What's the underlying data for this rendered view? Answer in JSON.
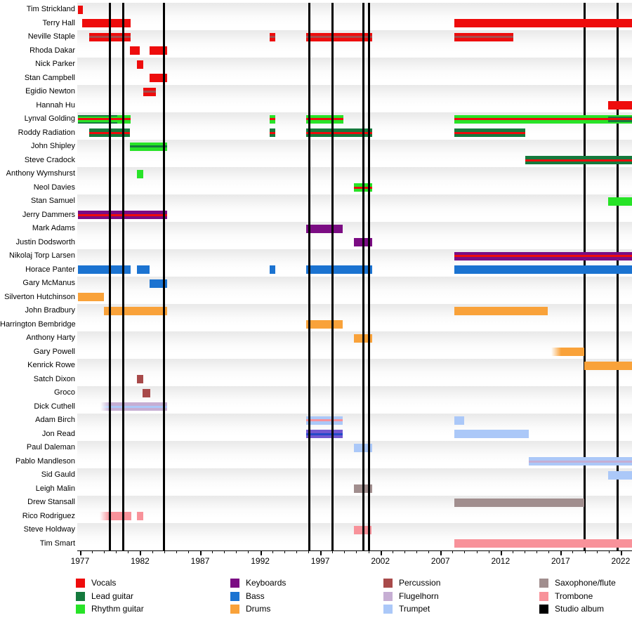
{
  "palette": {
    "vocals": "#ee0c0c",
    "lead_guitar": "#157a3d",
    "rhythm_guitar": "#27e327",
    "keyboards": "#7b0c83",
    "bass": "#1b73d1",
    "drums": "#f9a23a",
    "percussion": "#a84a4a",
    "flugelhorn": "#c6aed3",
    "trumpet": "#abc8f8",
    "sax_flute": "#a18e8e",
    "trombone": "#f8929a",
    "studio_album": "#000000",
    "flugelhorn_deep": "#7257d0",
    "trumpet_deep": "#2449c9"
  },
  "legend": [
    {
      "label": "Vocals",
      "color": "vocals"
    },
    {
      "label": "Lead guitar",
      "color": "lead_guitar"
    },
    {
      "label": "Rhythm guitar",
      "color": "rhythm_guitar"
    },
    {
      "label": "Keyboards",
      "color": "keyboards"
    },
    {
      "label": "Bass",
      "color": "bass"
    },
    {
      "label": "Drums",
      "color": "drums"
    },
    {
      "label": "Percussion",
      "color": "percussion"
    },
    {
      "label": "Flugelhorn",
      "color": "flugelhorn"
    },
    {
      "label": "Trumpet",
      "color": "trumpet"
    },
    {
      "label": "Saxophone/flute",
      "color": "sax_flute"
    },
    {
      "label": "Trombone",
      "color": "trombone"
    },
    {
      "label": "Studio album",
      "color": "studio_album"
    }
  ],
  "chart_data": {
    "type": "timeline",
    "x_domain": [
      1976.77,
      2022.94
    ],
    "x_ticks_major": [
      1977,
      1982,
      1987,
      1992,
      1997,
      2002,
      2007,
      2012,
      2017,
      2022
    ],
    "x_minor_step": 1,
    "albums": [
      {
        "year": 1979.5,
        "layer": "front"
      },
      {
        "year": 1980.57,
        "layer": "front"
      },
      {
        "year": 1983.97,
        "layer": "front"
      },
      {
        "year": 1996.1,
        "layer": "front"
      },
      {
        "year": 1998.03,
        "layer": "front"
      },
      {
        "year": 2000.61,
        "layer": "front"
      },
      {
        "year": 2001.08,
        "layer": "front"
      },
      {
        "year": 2019.0,
        "layer": "back"
      },
      {
        "year": 2021.72,
        "layer": "back"
      }
    ],
    "members": [
      {
        "label": "Tim Strickland",
        "bars": [
          {
            "s": 1976.82,
            "e": 1977.25,
            "st": [
              "vocals"
            ]
          }
        ]
      },
      {
        "label": "Terry Hall",
        "bars": [
          {
            "s": 1977.18,
            "e": 1981.21,
            "st": [
              "vocals"
            ]
          },
          {
            "s": 2008.14,
            "e": 2022.94,
            "st": [
              "vocals"
            ]
          }
        ]
      },
      {
        "label": "Neville Staple",
        "bars": [
          {
            "s": 1977.74,
            "e": 1981.21,
            "st": [
              "vocals",
              "percussion",
              "vocals"
            ]
          },
          {
            "s": 1992.78,
            "e": 1993.25,
            "st": [
              "vocals",
              "percussion",
              "vocals"
            ]
          },
          {
            "s": 1995.82,
            "e": 2001.31,
            "st": [
              "vocals",
              "percussion",
              "vocals"
            ]
          },
          {
            "s": 2008.14,
            "e": 2013.06,
            "st": [
              "vocals",
              "percussion",
              "vocals"
            ]
          }
        ]
      },
      {
        "label": "Rhoda Dakar",
        "bars": [
          {
            "s": 1981.15,
            "e": 1982.0,
            "st": [
              "vocals"
            ]
          },
          {
            "s": 1982.79,
            "e": 1984.23,
            "st": [
              "vocals"
            ]
          }
        ]
      },
      {
        "label": "Nick Parker",
        "bars": [
          {
            "s": 1981.73,
            "e": 1982.28,
            "st": [
              "vocals"
            ]
          }
        ]
      },
      {
        "label": "Stan Campbell",
        "bars": [
          {
            "s": 1982.79,
            "e": 1984.23,
            "st": [
              "vocals"
            ]
          }
        ]
      },
      {
        "label": "Egidio Newton",
        "bars": [
          {
            "s": 1982.28,
            "e": 1983.31,
            "st": [
              "vocals",
              "percussion",
              "vocals"
            ]
          }
        ]
      },
      {
        "label": "Hannah Hu",
        "bars": [
          {
            "s": 2020.94,
            "e": 2022.94,
            "st": [
              "vocals"
            ]
          }
        ]
      },
      {
        "label": "Lynval Golding",
        "bars": [
          {
            "s": 1976.82,
            "e": 1980.1,
            "st": [
              "lead_guitar",
              "rhythm_guitar",
              "vocals",
              "rhythm_guitar",
              "lead_guitar"
            ]
          },
          {
            "s": 1980.1,
            "e": 1981.21,
            "st": [
              "rhythm_guitar",
              "vocals",
              "rhythm_guitar"
            ]
          },
          {
            "s": 1992.78,
            "e": 1993.25,
            "st": [
              "rhythm_guitar",
              "vocals",
              "rhythm_guitar"
            ]
          },
          {
            "s": 1995.82,
            "e": 1998.92,
            "st": [
              "rhythm_guitar",
              "vocals",
              "rhythm_guitar"
            ]
          },
          {
            "s": 2008.14,
            "e": 2020.94,
            "st": [
              "rhythm_guitar",
              "vocals",
              "rhythm_guitar"
            ]
          },
          {
            "s": 2020.94,
            "e": 2022.94,
            "st": [
              "rhythm_guitar",
              "lead_guitar",
              "vocals",
              "lead_guitar",
              "rhythm_guitar"
            ]
          }
        ]
      },
      {
        "label": "Roddy Radiation",
        "bars": [
          {
            "s": 1977.74,
            "e": 1981.15,
            "st": [
              "lead_guitar",
              "vocals",
              "lead_guitar"
            ]
          },
          {
            "s": 1992.78,
            "e": 1993.25,
            "st": [
              "lead_guitar",
              "vocals",
              "lead_guitar"
            ]
          },
          {
            "s": 1995.82,
            "e": 2001.31,
            "st": [
              "lead_guitar",
              "vocals",
              "lead_guitar"
            ]
          },
          {
            "s": 2008.14,
            "e": 2014.05,
            "st": [
              "lead_guitar",
              "vocals",
              "lead_guitar"
            ]
          }
        ]
      },
      {
        "label": "John Shipley",
        "bars": [
          {
            "s": 1981.15,
            "e": 1984.23,
            "st": [
              "rhythm_guitar",
              "lead_guitar",
              "rhythm_guitar"
            ]
          }
        ]
      },
      {
        "label": "Steve Cradock",
        "bars": [
          {
            "s": 2014.05,
            "e": 2022.94,
            "st": [
              "lead_guitar",
              "vocals",
              "lead_guitar"
            ]
          }
        ]
      },
      {
        "label": "Anthony Wymshurst",
        "bars": [
          {
            "s": 1981.73,
            "e": 1982.28,
            "st": [
              "rhythm_guitar"
            ]
          }
        ]
      },
      {
        "label": "Neol Davies",
        "bars": [
          {
            "s": 1999.81,
            "e": 2001.31,
            "st": [
              "rhythm_guitar",
              "vocals",
              "rhythm_guitar"
            ]
          }
        ]
      },
      {
        "label": "Stan Samuel",
        "bars": [
          {
            "s": 2020.94,
            "e": 2022.94,
            "st": [
              "rhythm_guitar"
            ]
          }
        ]
      },
      {
        "label": "Jerry Dammers",
        "bars": [
          {
            "s": 1976.82,
            "e": 1984.23,
            "st": [
              "keyboards",
              "vocals",
              "keyboards"
            ]
          }
        ]
      },
      {
        "label": "Mark Adams",
        "bars": [
          {
            "s": 1995.82,
            "e": 1998.86,
            "st": [
              "keyboards"
            ]
          }
        ]
      },
      {
        "label": "Justin Dodsworth",
        "bars": [
          {
            "s": 1999.81,
            "e": 2001.31,
            "st": [
              "keyboards"
            ]
          }
        ]
      },
      {
        "label": "Nikolaj Torp Larsen",
        "bars": [
          {
            "s": 2008.14,
            "e": 2022.94,
            "st": [
              "keyboards",
              "vocals",
              "keyboards"
            ]
          }
        ]
      },
      {
        "label": "Horace Panter",
        "bars": [
          {
            "s": 1976.82,
            "e": 1981.21,
            "st": [
              "bass"
            ]
          },
          {
            "s": 1981.73,
            "e": 1982.79,
            "st": [
              "bass"
            ]
          },
          {
            "s": 1992.78,
            "e": 1993.25,
            "st": [
              "bass"
            ]
          },
          {
            "s": 1995.82,
            "e": 2001.31,
            "st": [
              "bass"
            ]
          },
          {
            "s": 2008.14,
            "e": 2022.94,
            "st": [
              "bass"
            ]
          }
        ]
      },
      {
        "label": "Gary McManus",
        "bars": [
          {
            "s": 1982.79,
            "e": 1984.23,
            "st": [
              "bass"
            ]
          }
        ]
      },
      {
        "label": "Silverton Hutchinson",
        "bars": [
          {
            "s": 1976.82,
            "e": 1978.97,
            "st": [
              "drums"
            ]
          }
        ]
      },
      {
        "label": "John Bradbury",
        "bars": [
          {
            "s": 1978.97,
            "e": 1984.23,
            "st": [
              "drums"
            ]
          },
          {
            "s": 2008.14,
            "e": 2015.92,
            "st": [
              "drums"
            ]
          }
        ]
      },
      {
        "label": "Harrington Bembridge",
        "bars": [
          {
            "s": 1995.82,
            "e": 1998.86,
            "st": [
              "drums"
            ]
          }
        ]
      },
      {
        "label": "Anthony Harty",
        "bars": [
          {
            "s": 1999.81,
            "e": 2001.31,
            "st": [
              "drums"
            ]
          }
        ]
      },
      {
        "label": "Gary Powell",
        "bars": [
          {
            "s": 2016.22,
            "e": 2018.95,
            "st": [
              "drums"
            ],
            "fade_left": true
          }
        ]
      },
      {
        "label": "Kenrick Rowe",
        "bars": [
          {
            "s": 2018.95,
            "e": 2022.94,
            "st": [
              "drums"
            ]
          }
        ]
      },
      {
        "label": "Satch Dixon",
        "bars": [
          {
            "s": 1981.73,
            "e": 1982.28,
            "st": [
              "percussion"
            ]
          }
        ]
      },
      {
        "label": "Groco",
        "bars": [
          {
            "s": 1982.2,
            "e": 1982.83,
            "st": [
              "percussion"
            ]
          }
        ]
      },
      {
        "label": "Dick Cuthell",
        "bars": [
          {
            "s": 1978.7,
            "e": 1984.23,
            "st": [
              "flugelhorn",
              "trumpet",
              "flugelhorn"
            ],
            "fade_left": true
          }
        ]
      },
      {
        "label": "Adam Birch",
        "bars": [
          {
            "s": 1995.82,
            "e": 1998.86,
            "st": [
              "trumpet",
              "trombone",
              "trumpet"
            ]
          },
          {
            "s": 2008.14,
            "e": 2008.97,
            "st": [
              "trumpet"
            ]
          }
        ]
      },
      {
        "label": "Jon Read",
        "bars": [
          {
            "s": 1995.82,
            "e": 1998.86,
            "st": [
              "flugelhorn_deep",
              "trumpet_deep",
              "flugelhorn_deep"
            ]
          },
          {
            "s": 2008.14,
            "e": 2014.37,
            "st": [
              "trumpet"
            ]
          }
        ]
      },
      {
        "label": "Paul Daleman",
        "bars": [
          {
            "s": 1999.81,
            "e": 2001.31,
            "st": [
              "trumpet"
            ]
          }
        ]
      },
      {
        "label": "Pablo Mandleson",
        "bars": [
          {
            "s": 2014.37,
            "e": 2022.94,
            "st": [
              "trumpet",
              "flugelhorn",
              "trumpet"
            ]
          }
        ]
      },
      {
        "label": "Sid Gauld",
        "bars": [
          {
            "s": 2020.94,
            "e": 2022.94,
            "st": [
              "trumpet"
            ]
          }
        ]
      },
      {
        "label": "Leigh Malin",
        "bars": [
          {
            "s": 1999.81,
            "e": 2001.31,
            "st": [
              "sax_flute"
            ]
          }
        ]
      },
      {
        "label": "Drew Stansall",
        "bars": [
          {
            "s": 2008.14,
            "e": 2018.95,
            "st": [
              "sax_flute"
            ]
          }
        ]
      },
      {
        "label": "Rico Rodriguez",
        "bars": [
          {
            "s": 1978.64,
            "e": 1981.27,
            "st": [
              "trombone"
            ],
            "fade_left": true
          },
          {
            "s": 1981.73,
            "e": 1982.28,
            "st": [
              "trombone"
            ]
          }
        ]
      },
      {
        "label": "Steve Holdway",
        "bars": [
          {
            "s": 1999.81,
            "e": 2001.25,
            "st": [
              "trombone"
            ]
          }
        ]
      },
      {
        "label": "Tim Smart",
        "bars": [
          {
            "s": 2008.14,
            "e": 2022.94,
            "st": [
              "trombone"
            ]
          }
        ]
      }
    ]
  }
}
